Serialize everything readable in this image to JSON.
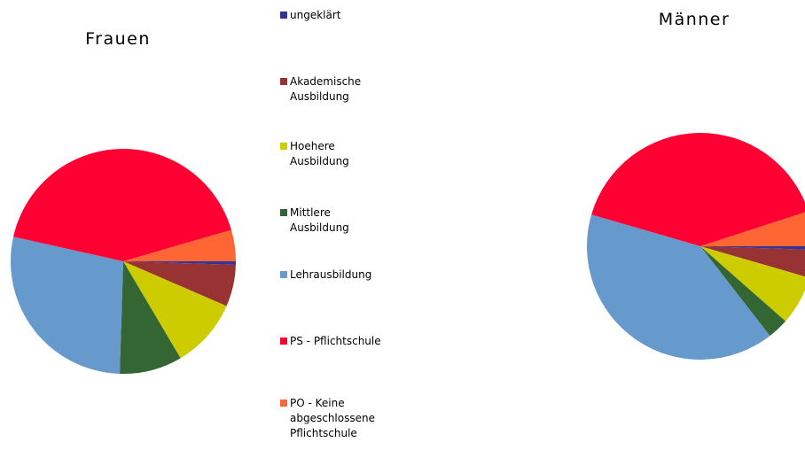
{
  "legend": {
    "categories": [
      "ungeklärt",
      "Akademische Ausbildung",
      "Hoehere Ausbildung",
      "Mittlere Ausbildung",
      "Lehrausbildung",
      "PS - Pflichtschule",
      "PO - Keine abgeschlossene Pflichtschule"
    ],
    "colors": [
      "#333399",
      "#993333",
      "#cccc00",
      "#336633",
      "#6699cc",
      "#ff0033",
      "#ff6633"
    ]
  },
  "chart_data": [
    {
      "type": "pie",
      "title": "Frauen",
      "values": [
        0.5,
        6,
        10,
        9,
        28,
        42,
        4.5
      ]
    },
    {
      "type": "pie",
      "title": "Männer",
      "values": [
        0.5,
        4,
        7,
        3,
        40,
        40.5,
        5
      ]
    }
  ]
}
